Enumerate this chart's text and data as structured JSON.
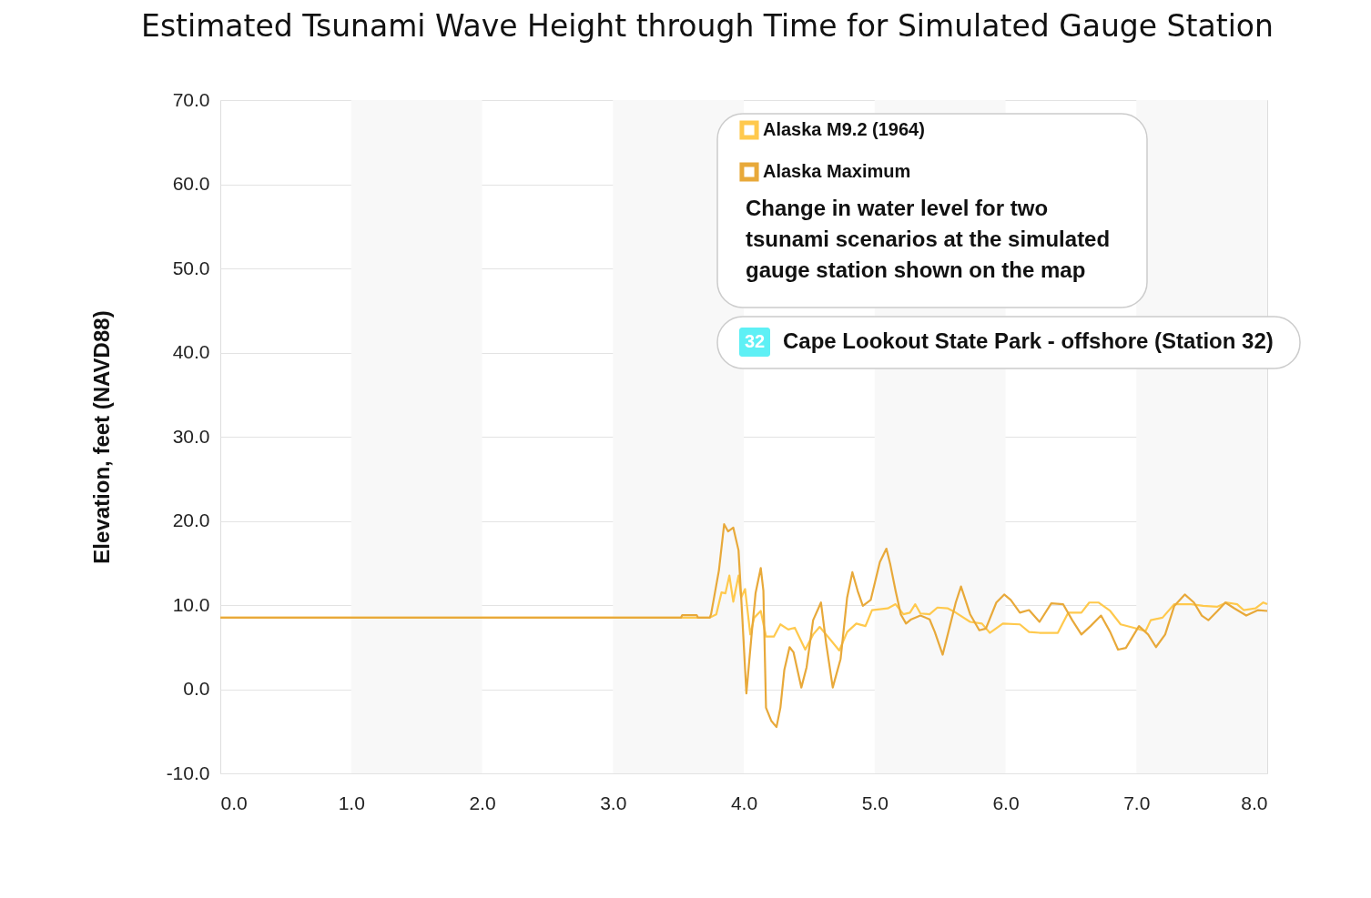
{
  "chart_data": {
    "type": "line",
    "title": "Estimated Tsunami Wave Height through Time for Simulated Gauge Station",
    "ylabel": "Elevation, feet (NAVD88)",
    "xlim": [
      0,
      8
    ],
    "xticks": [
      {
        "value": 0,
        "label": "0.0"
      },
      {
        "value": 1,
        "label": "1.0"
      },
      {
        "value": 2,
        "label": "2.0"
      },
      {
        "value": 3,
        "label": "3.0"
      },
      {
        "value": 4,
        "label": "4.0"
      },
      {
        "value": 5,
        "label": "5.0"
      },
      {
        "value": 6,
        "label": "6.0"
      },
      {
        "value": 7,
        "label": "7.0"
      },
      {
        "value": 8,
        "label": "8.0"
      }
    ],
    "ylim": [
      -10,
      70
    ],
    "yticks": [
      {
        "value": -10,
        "label": "-10.0"
      },
      {
        "value": 0,
        "label": "0.0"
      },
      {
        "value": 10,
        "label": "10.0"
      },
      {
        "value": 20,
        "label": "20.0"
      },
      {
        "value": 30,
        "label": "30.0"
      },
      {
        "value": 40,
        "label": "40.0"
      },
      {
        "value": 50,
        "label": "50.0"
      },
      {
        "value": 60,
        "label": "60.0"
      },
      {
        "value": 70,
        "label": "70.0"
      }
    ],
    "grid": "y",
    "legend": "top",
    "marker": "none",
    "line_style": "solid",
    "bands": [
      {
        "axis": "x",
        "from": 1,
        "to": 2,
        "color": "#f8f8f8"
      },
      {
        "axis": "x",
        "from": 3,
        "to": 4,
        "color": "#f8f8f8"
      },
      {
        "axis": "x",
        "from": 5,
        "to": 6,
        "color": "#f8f8f8"
      },
      {
        "axis": "x",
        "from": 7,
        "to": 8,
        "color": "#f8f8f8"
      }
    ],
    "annotations": [
      "Change in water level for two tsunami scenarios at the simulated gauge station shown on the map",
      "32",
      "Cape Lookout State Park - offshore (Station 32)"
    ],
    "series": [
      {
        "name": "Alaska M9.2 (1964)",
        "color": "#ffc94d",
        "x": [
          0,
          3.74,
          3.79,
          3.83,
          3.86,
          3.89,
          3.92,
          3.96,
          3.98,
          4.01,
          4.05,
          4.08,
          4.13,
          4.17,
          4.23,
          4.28,
          4.34,
          4.39,
          4.47,
          4.53,
          4.58,
          4.65,
          4.73,
          4.79,
          4.86,
          4.93,
          4.98,
          5.1,
          5.16,
          5.22,
          5.27,
          5.31,
          5.35,
          5.42,
          5.48,
          5.56,
          5.62,
          5.73,
          5.82,
          5.88,
          5.98,
          6.11,
          6.18,
          6.26,
          6.4,
          6.48,
          6.58,
          6.64,
          6.71,
          6.8,
          6.88,
          6.98,
          7.07,
          7.11,
          7.2,
          7.29,
          7.42,
          7.51,
          7.62,
          7.69,
          7.77,
          7.82,
          7.91,
          7.97,
          8.0
        ],
        "values": [
          8.5,
          8.5,
          8.9,
          11.5,
          11.4,
          13.5,
          10.4,
          13.5,
          10.9,
          11.9,
          6.5,
          8.5,
          9.3,
          6.25,
          6.25,
          7.7,
          7.1,
          7.3,
          4.7,
          6.5,
          7.4,
          6.1,
          4.6,
          6.8,
          7.8,
          7.5,
          9.4,
          9.6,
          10.1,
          8.9,
          9.1,
          10.1,
          9.0,
          8.9,
          9.7,
          9.6,
          9.1,
          8.0,
          7.8,
          6.7,
          7.8,
          7.7,
          6.8,
          6.7,
          6.7,
          9.1,
          9.1,
          10.3,
          10.3,
          9.3,
          7.7,
          7.3,
          6.9,
          8.2,
          8.5,
          10.1,
          10.1,
          9.9,
          9.8,
          10.3,
          10.1,
          9.4,
          9.6,
          10.3,
          10.1
        ]
      },
      {
        "name": "Alaska Maximum",
        "color": "#e8a93a",
        "x": [
          0,
          3.52,
          3.53,
          3.64,
          3.65,
          3.74,
          3.75,
          3.81,
          3.85,
          3.88,
          3.92,
          3.96,
          3.99,
          4.02,
          4.06,
          4.09,
          4.13,
          4.15,
          4.17,
          4.21,
          4.25,
          4.28,
          4.31,
          4.35,
          4.38,
          4.44,
          4.48,
          4.53,
          4.59,
          4.63,
          4.68,
          4.74,
          4.79,
          4.83,
          4.87,
          4.91,
          4.97,
          5.04,
          5.09,
          5.12,
          5.16,
          5.2,
          5.24,
          5.28,
          5.35,
          5.42,
          5.46,
          5.52,
          5.57,
          5.62,
          5.66,
          5.73,
          5.8,
          5.85,
          5.93,
          5.99,
          6.04,
          6.11,
          6.18,
          6.26,
          6.35,
          6.44,
          6.51,
          6.58,
          6.65,
          6.73,
          6.8,
          6.86,
          6.92,
          7.02,
          7.09,
          7.15,
          7.22,
          7.29,
          7.37,
          7.44,
          7.5,
          7.55,
          7.62,
          7.68,
          7.75,
          7.84,
          7.93,
          8.0
        ],
        "values": [
          8.5,
          8.5,
          8.8,
          8.8,
          8.5,
          8.5,
          8.9,
          14.1,
          19.6,
          18.75,
          19.2,
          16.5,
          8.2,
          -0.5,
          6.5,
          11.4,
          14.4,
          11.7,
          -2.2,
          -3.75,
          -4.5,
          -2.2,
          2.3,
          5.0,
          4.4,
          0.2,
          2.6,
          8.2,
          10.3,
          5.4,
          0.2,
          3.6,
          10.9,
          13.9,
          11.7,
          9.9,
          10.6,
          15.1,
          16.7,
          14.8,
          11.7,
          8.9,
          7.8,
          8.3,
          8.75,
          8.3,
          6.8,
          4.1,
          7.2,
          10.3,
          12.2,
          8.9,
          7.0,
          7.2,
          10.3,
          11.25,
          10.6,
          9.1,
          9.4,
          8.0,
          10.2,
          10.1,
          8.2,
          6.5,
          7.5,
          8.75,
          6.8,
          4.7,
          4.9,
          7.5,
          6.5,
          5.0,
          6.5,
          9.9,
          11.25,
          10.3,
          8.75,
          8.2,
          9.3,
          10.3,
          9.6,
          8.75,
          9.4,
          9.3
        ]
      }
    ]
  }
}
